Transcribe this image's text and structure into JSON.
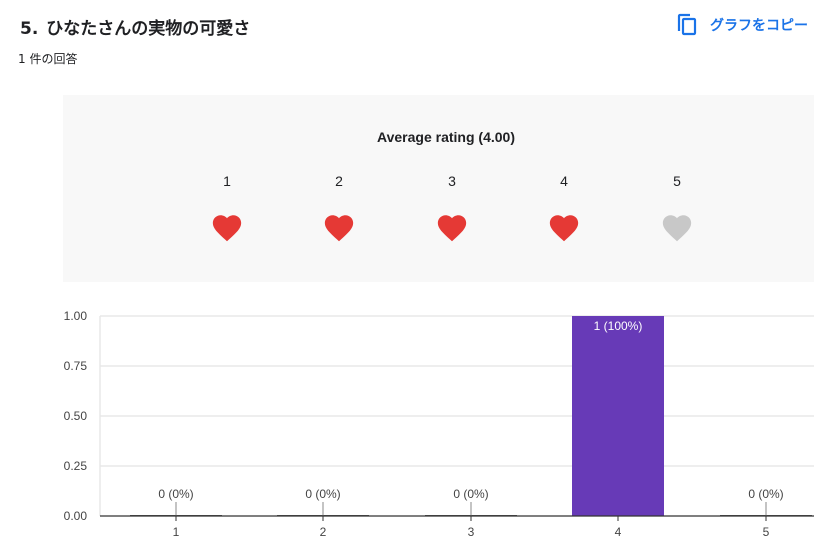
{
  "question": {
    "number": "5.",
    "title_bold_1": "ひなた",
    "title_normal": "さんの",
    "title_bold_2": "実物の可愛さ",
    "response_count": "1 件の回答"
  },
  "toolbar": {
    "copy_label": "グラフをコピー",
    "copy_icon": "copy-icon"
  },
  "rating_summary": {
    "title": "Average rating (4.00)",
    "levels": [
      "1",
      "2",
      "3",
      "4",
      "5"
    ],
    "filled_count": 4,
    "filled_color": "#e53935",
    "empty_color": "#c8c8c8",
    "icon": "heart-icon"
  },
  "chart_data": {
    "type": "bar",
    "categories": [
      "1",
      "2",
      "3",
      "4",
      "5"
    ],
    "values": [
      0,
      0,
      0,
      1,
      0
    ],
    "data_labels": [
      "0 (0%)",
      "0 (0%)",
      "0 (0%)",
      "1 (100%)",
      "0 (0%)"
    ],
    "y_ticks": [
      "0.00",
      "0.25",
      "0.50",
      "0.75",
      "1.00"
    ],
    "ylim": [
      0,
      1
    ],
    "grid": true,
    "bar_color": "#673ab7",
    "title": "",
    "xlabel": "",
    "ylabel": ""
  }
}
